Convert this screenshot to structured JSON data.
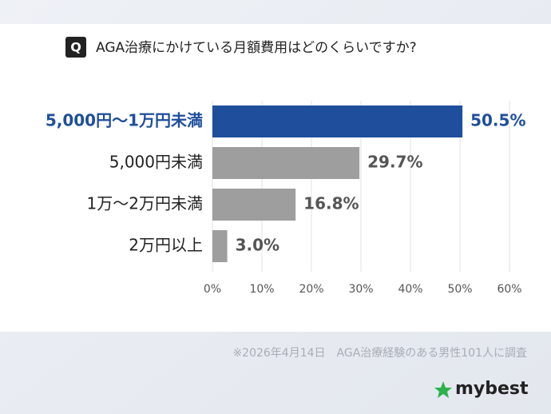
{
  "chart_data": {
    "type": "bar",
    "orientation": "horizontal",
    "title_badge": "Q",
    "title": "AGA治療にかけている月額費用はどのくらいですか?",
    "categories": [
      "5,000円～1万円未満",
      "5,000円未満",
      "1万～2万円未満",
      "2万円以上"
    ],
    "values": [
      50.5,
      29.7,
      16.8,
      3.0
    ],
    "value_labels": [
      "50.5%",
      "29.7%",
      "16.8%",
      "3.0%"
    ],
    "colors": [
      "#1f4e9c",
      "#9e9e9e",
      "#9e9e9e",
      "#9e9e9e"
    ],
    "label_colors": [
      "#1f4e9c",
      "#222222",
      "#222222",
      "#222222"
    ],
    "value_label_colors": [
      "#1f4e9c",
      "#555555",
      "#555555",
      "#555555"
    ],
    "xlim": [
      0,
      60
    ],
    "xticks": [
      {
        "value": 0,
        "label": "0%"
      },
      {
        "value": 10,
        "label": "10%"
      },
      {
        "value": 20,
        "label": "20%"
      },
      {
        "value": 30,
        "label": "30%"
      },
      {
        "value": 40,
        "label": "40%"
      },
      {
        "value": 50,
        "label": "50%"
      },
      {
        "value": 60,
        "label": "60%"
      }
    ],
    "grid": true,
    "note": "※2026年4月14日　AGA治療経験のある男性101人に調査",
    "brand": "mybest"
  }
}
